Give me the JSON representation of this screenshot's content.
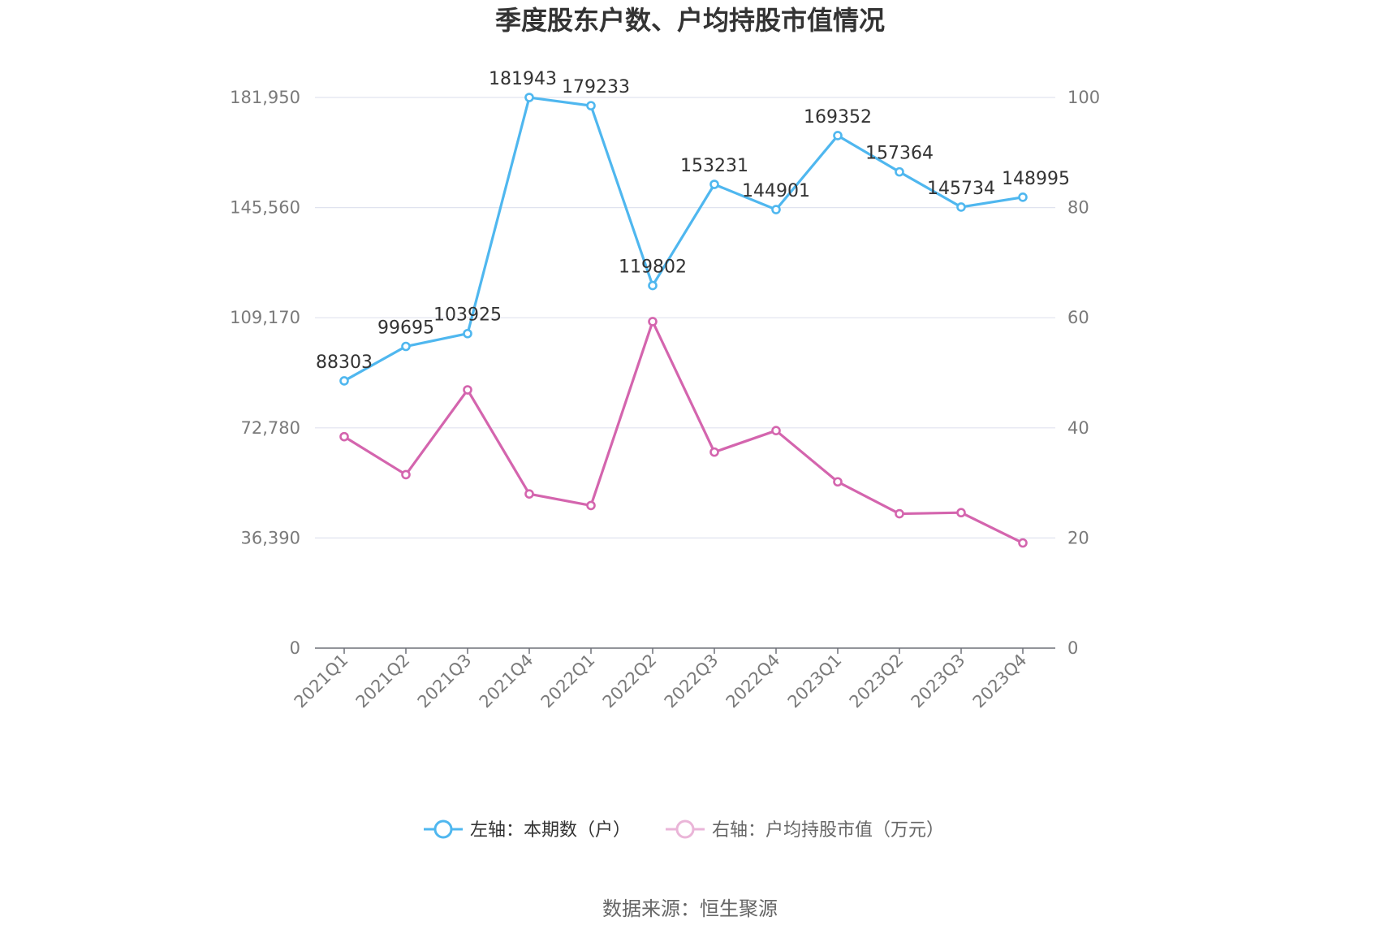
{
  "chart_data": {
    "type": "line",
    "title": "季度股东户数、户均持股市值情况",
    "categories": [
      "2021Q1",
      "2021Q2",
      "2021Q3",
      "2021Q4",
      "2022Q1",
      "2022Q2",
      "2022Q3",
      "2022Q4",
      "2023Q1",
      "2023Q2",
      "2023Q3",
      "2023Q4"
    ],
    "left_axis": {
      "ticks": [
        "0",
        "36,390",
        "72,780",
        "109,170",
        "145,560",
        "181,950"
      ],
      "ylim": [
        0,
        181950
      ]
    },
    "right_axis": {
      "ticks": [
        "0",
        "20",
        "40",
        "60",
        "80",
        "100"
      ],
      "ylim": [
        0,
        100
      ]
    },
    "series": [
      {
        "name": "左轴：本期数（户）",
        "axis": "left",
        "color": "#4fb7ef",
        "values": [
          88303,
          99695,
          103925,
          181943,
          179233,
          119802,
          153231,
          144901,
          169352,
          157364,
          145734,
          148995
        ],
        "labels": [
          "88303",
          "99695",
          "103925",
          "181943",
          "179233",
          "119802",
          "153231",
          "144901",
          "169352",
          "157364",
          "145734",
          "148995"
        ]
      },
      {
        "name": "右轴：户均持股市值（万元）",
        "axis": "right",
        "color": "#d465ae",
        "legend_color": "#eab5d8",
        "values": [
          38.4,
          31.5,
          46.9,
          28.0,
          25.9,
          59.3,
          35.6,
          39.5,
          30.2,
          24.4,
          24.6,
          19.1
        ]
      }
    ],
    "grid": true,
    "legend_position": "bottom"
  },
  "source": "数据来源：恒生聚源"
}
